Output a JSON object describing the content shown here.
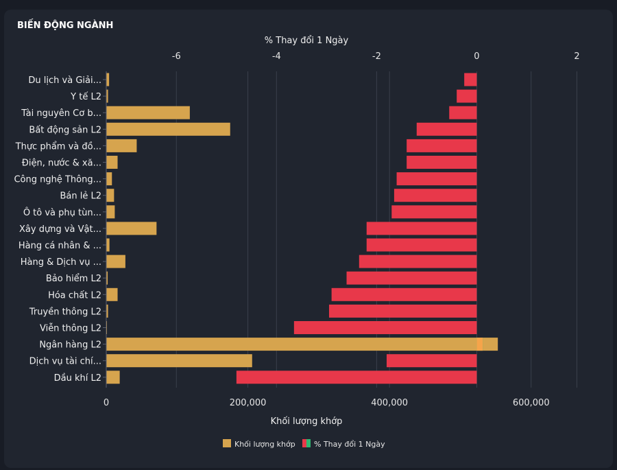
{
  "panel": {
    "title": "BIẾN ĐỘNG NGÀNH"
  },
  "chart_data": {
    "type": "bar",
    "orientation": "horizontal",
    "categories": [
      "Du lịch và Giải...",
      "Y tế L2",
      "Tài nguyên Cơ b...",
      "Bất động sản L2",
      "Thực phẩm và đồ...",
      "Điện, nước & xă...",
      "Công nghệ Thông...",
      "Bán lẻ L2",
      "Ô tô và phụ tùn...",
      "Xây dựng và Vật...",
      "Hàng cá nhân & ...",
      "Hàng & Dịch vụ ...",
      "Bảo hiểm L2",
      "Hóa chất L2",
      "Truyền thông L2",
      "Viễn thông L2",
      "Ngân hàng L2",
      "Dịch vụ tài chí...",
      "Dầu khí L2"
    ],
    "series": [
      {
        "name": "Khối lượng khớp",
        "axis": "bottom",
        "color": "#d6a44e",
        "values": [
          4000,
          2500,
          118000,
          175000,
          43000,
          16000,
          8000,
          11000,
          12000,
          71000,
          4500,
          27000,
          2000,
          16000,
          2500,
          500,
          553000,
          206000,
          19000
        ]
      },
      {
        "name": "% Thay đổi 1 Ngày",
        "axis": "top",
        "color": "#e8384a",
        "color_positive": "#2eb872",
        "values": [
          -0.25,
          -0.4,
          -0.55,
          -1.2,
          -1.4,
          -1.4,
          -1.6,
          -1.65,
          -1.7,
          -2.2,
          -2.2,
          -2.35,
          -2.6,
          -2.9,
          -2.95,
          -3.65,
          0.12,
          -1.8,
          -4.8
        ]
      }
    ],
    "xlabel_bottom": "Khối lượng khớp",
    "xlabel_top": "% Thay đổi 1 Ngày",
    "xlim_bottom": [
      0,
      700000
    ],
    "xlim_top": [
      -7.4,
      2.5
    ],
    "ticks_bottom": [
      0,
      200000,
      400000,
      600000
    ],
    "tick_labels_bottom": [
      "0",
      "200,000",
      "400,000",
      "600,000"
    ],
    "ticks_top": [
      -6,
      -4,
      -2,
      0,
      2
    ],
    "tick_labels_top": [
      "-6",
      "-4",
      "-2",
      "0",
      "2"
    ],
    "legend": [
      {
        "label": "Khối lượng khớp",
        "colors": [
          "#d6a44e"
        ]
      },
      {
        "label": "% Thay đổi 1 Ngày",
        "colors": [
          "#e8384a",
          "#2eb872"
        ]
      }
    ],
    "legend_position": "bottom-center",
    "grid": true
  }
}
